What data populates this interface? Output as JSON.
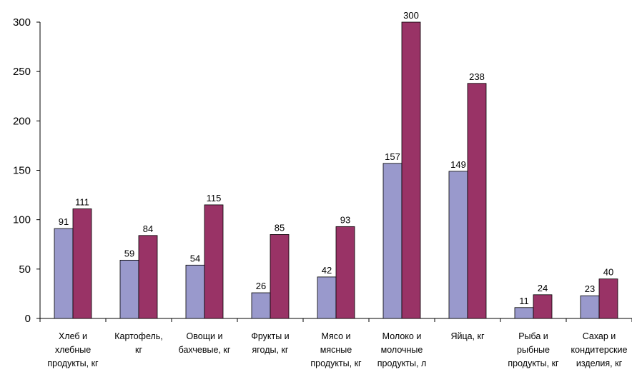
{
  "chart_data": {
    "type": "bar",
    "title": "",
    "xlabel": "",
    "ylabel": "",
    "ylim": [
      0,
      300
    ],
    "yticks": [
      0,
      50,
      100,
      150,
      200,
      250,
      300
    ],
    "grid": false,
    "legend": "none",
    "categories": [
      [
        "Хлеб и",
        "хлебные",
        "продукты, кг"
      ],
      [
        "Картофель,",
        "кг"
      ],
      [
        "Овощи и",
        "бахчевые, кг"
      ],
      [
        "Фрукты и",
        "ягоды, кг"
      ],
      [
        "Мясо и",
        "мясные",
        "продукты, кг"
      ],
      [
        "Молоко и",
        "молочные",
        "продукты, л"
      ],
      [
        "Яйца, кг"
      ],
      [
        "Рыба и",
        "рыбные",
        "продукты, кг"
      ],
      [
        "Сахар и",
        "кондитерские",
        "изделия, кг"
      ]
    ],
    "series": [
      {
        "values": [
          91,
          59,
          54,
          26,
          42,
          157,
          149,
          11,
          23
        ],
        "color": "#9999cc"
      },
      {
        "values": [
          111,
          84,
          115,
          85,
          93,
          300,
          238,
          24,
          40
        ],
        "color": "#993366"
      }
    ]
  }
}
